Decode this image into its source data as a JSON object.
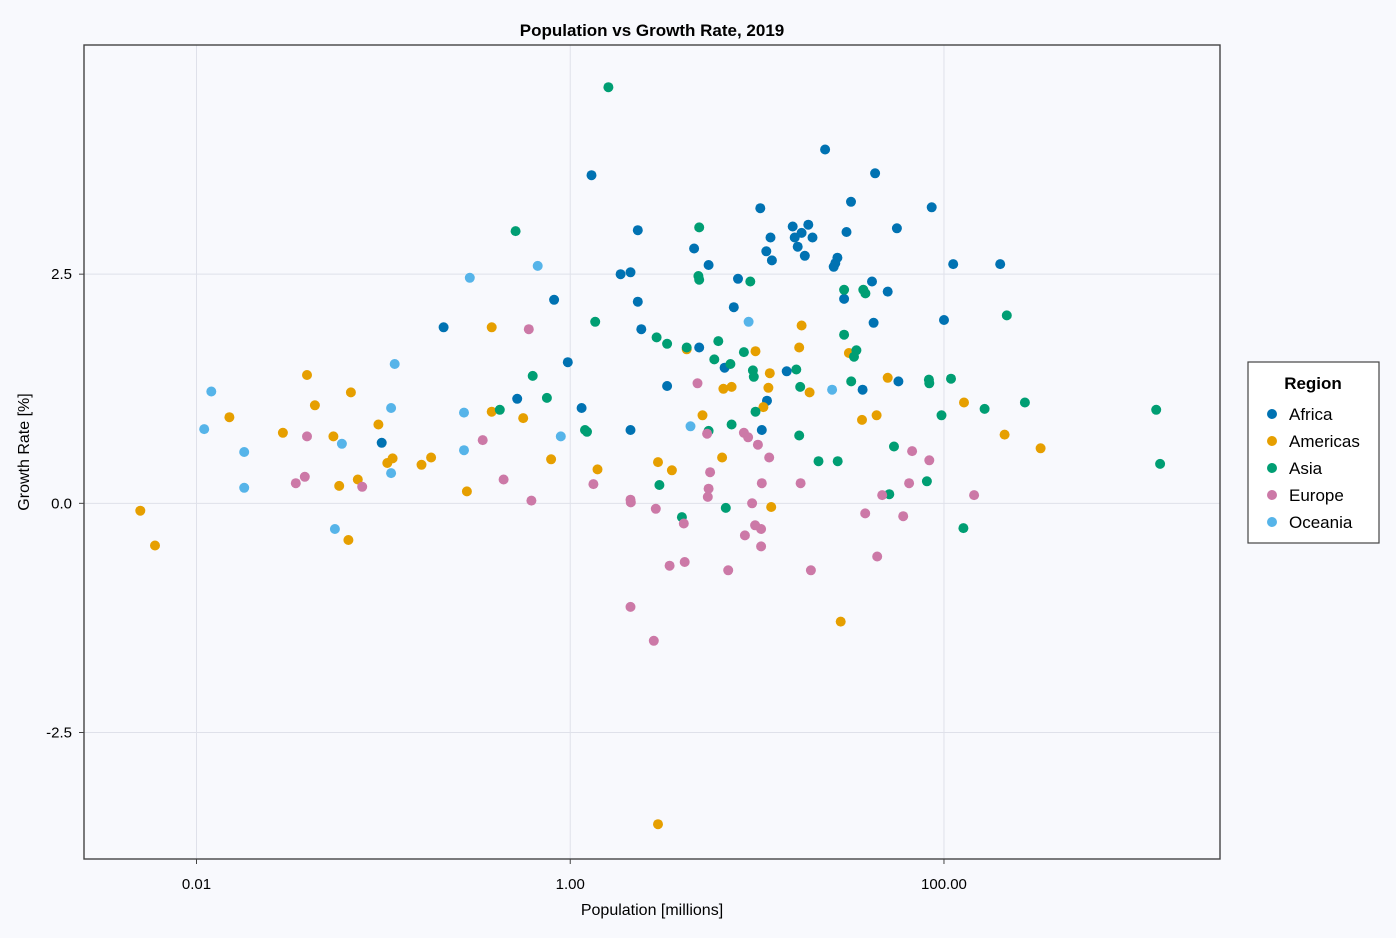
{
  "chart_data": {
    "type": "scatter",
    "title": "Population vs Growth Rate, 2019",
    "xlabel": "Population [millions]",
    "ylabel": "Growth Rate [%]",
    "xscale": "log",
    "xlim": [
      0.0025,
      3000
    ],
    "ylim": [
      -3.88,
      5.0
    ],
    "xticks": [
      0.01,
      1,
      100
    ],
    "xtick_labels": [
      "0.01",
      "1.00",
      "100.00"
    ],
    "yticks": [
      2.5,
      0.0,
      -2.5
    ],
    "ytick_labels": [
      "2.5",
      "0.0",
      "-2.5"
    ],
    "grid": true,
    "legend": {
      "title": "Region",
      "placement": "right-outside"
    },
    "series": [
      {
        "name": "Africa",
        "color": "#0072b2",
        "points": [
          [
            0.098,
            0.66
          ],
          [
            0.21,
            1.92
          ],
          [
            0.52,
            1.14
          ],
          [
            0.82,
            2.22
          ],
          [
            0.97,
            1.54
          ],
          [
            1.15,
            1.04
          ],
          [
            1.3,
            3.58
          ],
          [
            1.86,
            2.5
          ],
          [
            2.1,
            2.52
          ],
          [
            2.3,
            2.98
          ],
          [
            2.3,
            2.2
          ],
          [
            2.4,
            1.9
          ],
          [
            2.1,
            0.8
          ],
          [
            3.3,
            1.28
          ],
          [
            4.6,
            2.78
          ],
          [
            4.9,
            1.7
          ],
          [
            5.5,
            2.6
          ],
          [
            6.7,
            1.48
          ],
          [
            7.5,
            2.14
          ],
          [
            7.9,
            2.45
          ],
          [
            10.4,
            3.22
          ],
          [
            10.6,
            0.8
          ],
          [
            11.2,
            2.75
          ],
          [
            11.8,
            2.9
          ],
          [
            12.0,
            2.65
          ],
          [
            11.3,
            1.12
          ],
          [
            14.4,
            1.44
          ],
          [
            15.5,
            3.02
          ],
          [
            15.9,
            2.9
          ],
          [
            16.5,
            2.8
          ],
          [
            17.3,
            2.95
          ],
          [
            18.0,
            2.7
          ],
          [
            18.8,
            3.04
          ],
          [
            19.8,
            2.9
          ],
          [
            23.1,
            3.86
          ],
          [
            25.7,
            2.58
          ],
          [
            26.2,
            2.62
          ],
          [
            26.9,
            2.68
          ],
          [
            29.2,
            2.23
          ],
          [
            30.1,
            2.96
          ],
          [
            31.8,
            3.29
          ],
          [
            36.7,
            1.24
          ],
          [
            41.2,
            2.42
          ],
          [
            42.0,
            1.97
          ],
          [
            42.8,
            3.6
          ],
          [
            50.0,
            2.31
          ],
          [
            56.0,
            3.0
          ],
          [
            57.0,
            1.33
          ],
          [
            86.0,
            3.23
          ],
          [
            100.0,
            2.0
          ],
          [
            112.0,
            2.61
          ],
          [
            200.0,
            2.61
          ]
        ]
      },
      {
        "name": "Americas",
        "color": "#e69f00",
        "points": [
          [
            0.005,
            -0.08
          ],
          [
            0.006,
            -0.46
          ],
          [
            0.015,
            0.94
          ],
          [
            0.029,
            0.77
          ],
          [
            0.039,
            1.4
          ],
          [
            0.043,
            1.07
          ],
          [
            0.054,
            0.73
          ],
          [
            0.058,
            0.19
          ],
          [
            0.065,
            -0.4
          ],
          [
            0.067,
            1.21
          ],
          [
            0.073,
            0.26
          ],
          [
            0.094,
            0.86
          ],
          [
            0.105,
            0.44
          ],
          [
            0.112,
            0.49
          ],
          [
            0.16,
            0.42
          ],
          [
            0.18,
            0.5
          ],
          [
            0.28,
            0.13
          ],
          [
            0.38,
            1.92
          ],
          [
            0.38,
            1.0
          ],
          [
            0.56,
            0.93
          ],
          [
            0.79,
            0.48
          ],
          [
            1.4,
            0.37
          ],
          [
            2.95,
            -3.5
          ],
          [
            2.95,
            0.45
          ],
          [
            3.5,
            0.36
          ],
          [
            4.2,
            1.68
          ],
          [
            5.1,
            0.96
          ],
          [
            6.5,
            0.5
          ],
          [
            6.6,
            1.25
          ],
          [
            7.3,
            1.27
          ],
          [
            9.8,
            1.66
          ],
          [
            10.8,
            1.05
          ],
          [
            11.5,
            1.26
          ],
          [
            11.7,
            1.42
          ],
          [
            11.9,
            -0.04
          ],
          [
            16.8,
            1.7
          ],
          [
            17.3,
            1.94
          ],
          [
            19.1,
            1.21
          ],
          [
            28.0,
            -1.29
          ],
          [
            31.0,
            1.64
          ],
          [
            36.4,
            0.91
          ],
          [
            43.6,
            0.96
          ],
          [
            50.0,
            1.37
          ],
          [
            128.0,
            1.1
          ],
          [
            211.0,
            0.75
          ],
          [
            329.0,
            0.6
          ]
        ]
      },
      {
        "name": "Asia",
        "color": "#009e73",
        "points": [
          [
            0.42,
            1.02
          ],
          [
            0.51,
            2.97
          ],
          [
            0.63,
            1.39
          ],
          [
            0.75,
            1.15
          ],
          [
            1.2,
            0.8
          ],
          [
            1.23,
            0.78
          ],
          [
            1.36,
            1.98
          ],
          [
            1.6,
            4.54
          ],
          [
            2.9,
            1.81
          ],
          [
            3.0,
            0.2
          ],
          [
            3.3,
            1.74
          ],
          [
            3.96,
            -0.15
          ],
          [
            4.2,
            1.7
          ],
          [
            4.9,
            3.01
          ],
          [
            4.9,
            2.44
          ],
          [
            4.85,
            2.48
          ],
          [
            5.5,
            0.79
          ],
          [
            5.9,
            1.57
          ],
          [
            6.2,
            1.77
          ],
          [
            6.8,
            -0.05
          ],
          [
            7.2,
            1.52
          ],
          [
            7.3,
            0.86
          ],
          [
            8.5,
            1.65
          ],
          [
            9.2,
            2.42
          ],
          [
            9.5,
            1.45
          ],
          [
            9.8,
            1.0
          ],
          [
            9.6,
            1.38
          ],
          [
            17.0,
            1.27
          ],
          [
            16.2,
            1.46
          ],
          [
            16.8,
            0.74
          ],
          [
            21.3,
            0.46
          ],
          [
            27.0,
            0.46
          ],
          [
            29.2,
            2.33
          ],
          [
            29.2,
            1.84
          ],
          [
            31.9,
            1.33
          ],
          [
            33.0,
            1.6
          ],
          [
            34.0,
            1.67
          ],
          [
            37.0,
            2.33
          ],
          [
            38.0,
            2.29
          ],
          [
            51.0,
            0.1
          ],
          [
            54.0,
            0.62
          ],
          [
            81.0,
            0.24
          ],
          [
            83.0,
            1.35
          ],
          [
            83.5,
            1.31
          ],
          [
            97.0,
            0.96
          ],
          [
            109.0,
            1.36
          ],
          [
            127.0,
            -0.27
          ],
          [
            165.0,
            1.03
          ],
          [
            217.0,
            2.05
          ],
          [
            271.0,
            1.1
          ],
          [
            1366.0,
            1.02
          ],
          [
            1434.0,
            0.43
          ]
        ]
      },
      {
        "name": "Europe",
        "color": "#cc79a7",
        "points": [
          [
            0.034,
            0.22
          ],
          [
            0.038,
            0.29
          ],
          [
            0.039,
            0.73
          ],
          [
            0.077,
            0.18
          ],
          [
            0.34,
            0.69
          ],
          [
            0.44,
            0.26
          ],
          [
            0.6,
            1.9
          ],
          [
            0.62,
            0.03
          ],
          [
            1.33,
            0.21
          ],
          [
            2.1,
            -1.13
          ],
          [
            2.1,
            0.04
          ],
          [
            2.11,
            0.01
          ],
          [
            2.8,
            -1.5
          ],
          [
            2.87,
            -0.06
          ],
          [
            3.4,
            -0.68
          ],
          [
            4.05,
            -0.22
          ],
          [
            4.1,
            -0.64
          ],
          [
            4.8,
            1.31
          ],
          [
            5.4,
            0.76
          ],
          [
            5.5,
            0.16
          ],
          [
            5.45,
            0.07
          ],
          [
            5.6,
            0.34
          ],
          [
            7.0,
            -0.73
          ],
          [
            8.5,
            0.77
          ],
          [
            8.6,
            -0.35
          ],
          [
            8.95,
            0.72
          ],
          [
            9.4,
            0.0
          ],
          [
            9.75,
            -0.24
          ],
          [
            10.1,
            0.64
          ],
          [
            10.5,
            -0.28
          ],
          [
            10.5,
            -0.47
          ],
          [
            10.6,
            0.22
          ],
          [
            11.6,
            0.5
          ],
          [
            17.1,
            0.22
          ],
          [
            19.4,
            -0.73
          ],
          [
            37.9,
            -0.11
          ],
          [
            43.9,
            -0.58
          ],
          [
            46.7,
            0.09
          ],
          [
            60.5,
            -0.14
          ],
          [
            65.1,
            0.22
          ],
          [
            67.5,
            0.57
          ],
          [
            83.5,
            0.47
          ],
          [
            145.0,
            0.09
          ]
        ]
      },
      {
        "name": "Oceania",
        "color": "#56b4e9",
        "points": [
          [
            0.011,
            0.81
          ],
          [
            0.012,
            1.22
          ],
          [
            0.018,
            0.56
          ],
          [
            0.018,
            0.17
          ],
          [
            0.055,
            -0.28
          ],
          [
            0.06,
            0.65
          ],
          [
            0.11,
            0.33
          ],
          [
            0.11,
            1.04
          ],
          [
            0.115,
            1.52
          ],
          [
            0.27,
            0.99
          ],
          [
            0.27,
            0.58
          ],
          [
            0.29,
            2.46
          ],
          [
            0.67,
            2.59
          ],
          [
            0.89,
            0.73
          ],
          [
            4.4,
            0.84
          ],
          [
            9.0,
            1.98
          ],
          [
            25.2,
            1.24
          ]
        ]
      }
    ]
  }
}
